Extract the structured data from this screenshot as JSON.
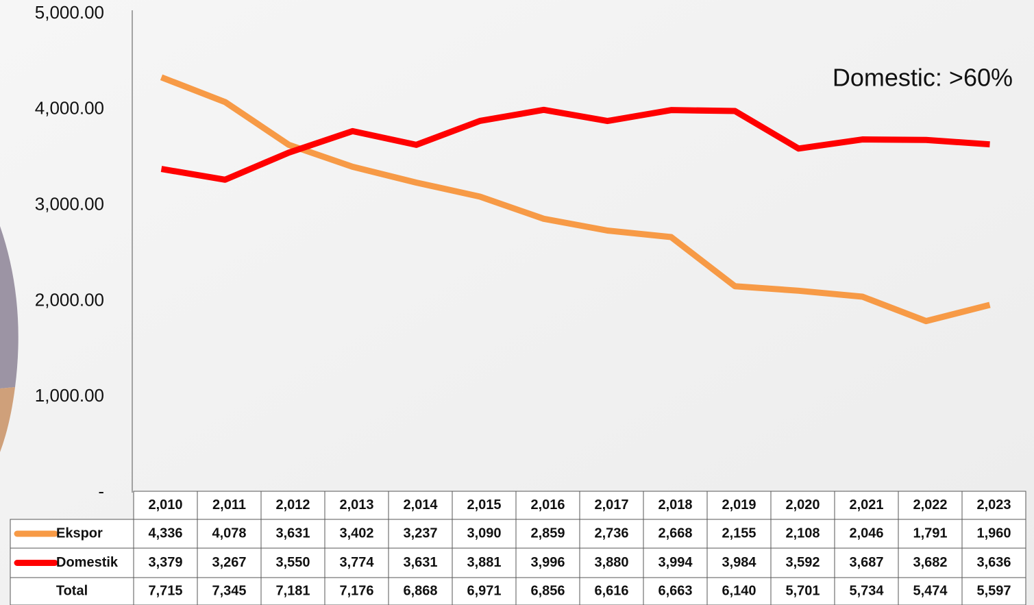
{
  "chart_data": {
    "type": "line",
    "annotation": "Domestic: >60%",
    "categories": [
      "2,010",
      "2,011",
      "2,012",
      "2,013",
      "2,014",
      "2,015",
      "2,016",
      "2,017",
      "2,018",
      "2,019",
      "2,020",
      "2,021",
      "2,022",
      "2,023"
    ],
    "series": [
      {
        "name": "Ekspor",
        "color": "#f79a46",
        "values": [
          4336,
          4078,
          3631,
          3402,
          3237,
          3090,
          2859,
          2736,
          2668,
          2155,
          2108,
          2046,
          1791,
          1960
        ],
        "value_labels": [
          "4,336",
          "4,078",
          "3,631",
          "3,402",
          "3,237",
          "3,090",
          "2,859",
          "2,736",
          "2,668",
          "2,155",
          "2,108",
          "2,046",
          "1,791",
          "1,960"
        ]
      },
      {
        "name": "Domestik",
        "color": "#ff0000",
        "values": [
          3379,
          3267,
          3550,
          3774,
          3631,
          3881,
          3996,
          3880,
          3994,
          3984,
          3592,
          3687,
          3682,
          3636
        ],
        "value_labels": [
          "3,379",
          "3,267",
          "3,550",
          "3,774",
          "3,631",
          "3,881",
          "3,996",
          "3,880",
          "3,994",
          "3,984",
          "3,592",
          "3,687",
          "3,682",
          "3,636"
        ]
      }
    ],
    "totals": {
      "name": "Total",
      "values": [
        7715,
        7345,
        7181,
        7176,
        6868,
        6971,
        6856,
        6616,
        6663,
        6140,
        5701,
        5734,
        5474,
        5597
      ],
      "value_labels": [
        "7,715",
        "7,345",
        "7,181",
        "7,176",
        "6,868",
        "6,971",
        "6,856",
        "6,616",
        "6,663",
        "6,140",
        "5,701",
        "5,734",
        "5,474",
        "5,597"
      ]
    },
    "ylim": [
      0,
      5000
    ],
    "yticks": [
      {
        "value": 0,
        "label": "-"
      },
      {
        "value": 1000,
        "label": "1,000.00"
      },
      {
        "value": 2000,
        "label": "2,000.00"
      },
      {
        "value": 3000,
        "label": "3,000.00"
      },
      {
        "value": 4000,
        "label": "4,000.00"
      },
      {
        "value": 5000,
        "label": "5,000.00"
      }
    ]
  }
}
